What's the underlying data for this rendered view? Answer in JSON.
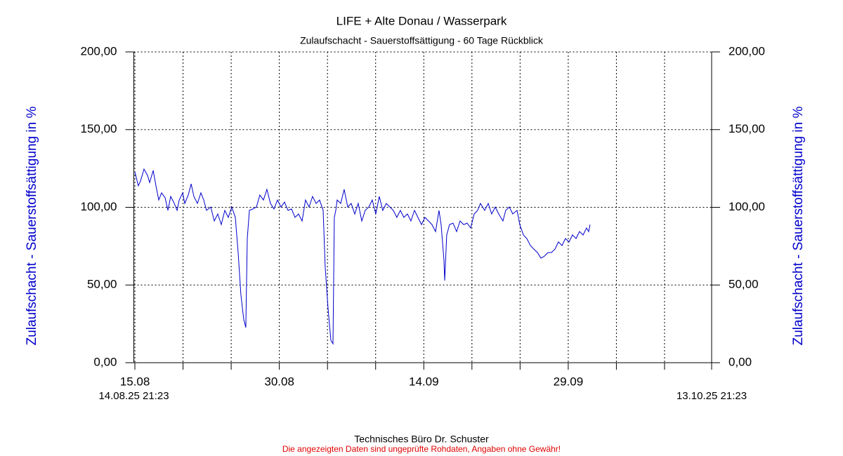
{
  "chart_data": {
    "type": "line",
    "title": "LIFE + Alte Donau / Wasserpark",
    "subtitle": "Zulaufschacht - Sauerstoffsättigung - 60 Tage Rückblick",
    "ylabel": "Zulaufschacht - Sauerstoffsättigung in %",
    "y2label": "Zulaufschacht - Sauerstoffsättigung in %",
    "footer": "Technisches Büro Dr. Schuster",
    "disclaimer": "Die angezeigten Daten sind ungeprüfte Rohdaten, Angaben ohne Gewähr!",
    "color": "#0000cc",
    "grid": true,
    "ylim": [
      0,
      200
    ],
    "yticks": [
      {
        "value": 0,
        "label": "0,00"
      },
      {
        "value": 50,
        "label": "50,00"
      },
      {
        "value": 100,
        "label": "100,00"
      },
      {
        "value": 150,
        "label": "150,00"
      },
      {
        "value": 200,
        "label": "200,00"
      }
    ],
    "y2lim": [
      0,
      200
    ],
    "y2ticks": [
      {
        "value": 0,
        "label": "0,00"
      },
      {
        "value": 50,
        "label": "50,00"
      },
      {
        "value": 100,
        "label": "100,00"
      },
      {
        "value": 150,
        "label": "150,00"
      },
      {
        "value": 200,
        "label": "200,00"
      }
    ],
    "xlim": [
      0,
      60
    ],
    "xlim_labels": [
      "14.08.25 21:23",
      "13.10.25 21:23"
    ],
    "xticks": [
      {
        "value": 0.11,
        "label": "15.08"
      },
      {
        "value": 5.11,
        "label": null
      },
      {
        "value": 10.11,
        "label": null
      },
      {
        "value": 15.11,
        "label": "30.08"
      },
      {
        "value": 20.11,
        "label": null
      },
      {
        "value": 25.11,
        "label": null
      },
      {
        "value": 30.11,
        "label": "14.09"
      },
      {
        "value": 35.11,
        "label": null
      },
      {
        "value": 40.11,
        "label": null
      },
      {
        "value": 45.11,
        "label": "29.09"
      },
      {
        "value": 50.11,
        "label": null
      },
      {
        "value": 55.11,
        "label": null
      },
      {
        "value": 60,
        "label": null
      }
    ],
    "x": [
      0.11,
      0.47,
      0.69,
      1.06,
      1.42,
      1.64,
      2.01,
      2.3,
      2.59,
      2.88,
      3.25,
      3.54,
      3.83,
      4.2,
      4.49,
      4.71,
      5.07,
      5.29,
      5.65,
      5.95,
      6.24,
      6.6,
      6.97,
      7.26,
      7.55,
      7.99,
      8.35,
      8.72,
      9.08,
      9.45,
      9.81,
      10.17,
      10.54,
      10.83,
      11.12,
      11.41,
      11.63,
      11.78,
      12.0,
      12.36,
      12.73,
      13.09,
      13.46,
      13.82,
      14.19,
      14.55,
      14.92,
      15.28,
      15.65,
      16.01,
      16.38,
      16.74,
      17.1,
      17.47,
      17.83,
      18.2,
      18.56,
      18.93,
      19.29,
      19.66,
      19.87,
      20.17,
      20.46,
      20.68,
      20.82,
      20.97,
      21.11,
      21.48,
      21.84,
      22.21,
      22.57,
      22.94,
      23.3,
      23.67,
      24.03,
      24.4,
      24.76,
      25.12,
      25.49,
      25.85,
      26.22,
      26.59,
      26.95,
      27.31,
      27.68,
      28.04,
      28.41,
      28.77,
      29.14,
      29.5,
      29.87,
      30.23,
      30.6,
      30.96,
      31.33,
      31.69,
      31.91,
      32.2,
      32.28,
      32.49,
      32.78,
      33.15,
      33.52,
      33.88,
      34.25,
      34.61,
      34.98,
      35.34,
      35.7,
      35.99,
      36.43,
      36.8,
      37.16,
      37.53,
      37.89,
      38.33,
      38.62,
      38.99,
      39.35,
      39.79,
      40.08,
      40.45,
      40.81,
      41.18,
      41.54,
      41.91,
      42.27,
      42.64,
      43.0,
      43.36,
      43.73,
      44.09,
      44.46,
      44.82,
      45.19,
      45.55,
      45.92,
      46.28,
      46.65,
      47.01,
      47.23,
      47.38
    ],
    "values": [
      122.8,
      113.8,
      116.9,
      124.6,
      120.5,
      116.0,
      123.7,
      113.8,
      104.7,
      109.3,
      106.1,
      98.0,
      107.0,
      102.5,
      98.0,
      104.7,
      109.3,
      102.5,
      107.9,
      115.1,
      107.0,
      102.5,
      109.3,
      104.7,
      98.0,
      100.2,
      91.2,
      95.7,
      88.9,
      98.0,
      93.5,
      100.2,
      93.5,
      70.9,
      43.8,
      28.0,
      22.6,
      79.9,
      98.0,
      98.9,
      100.2,
      107.9,
      104.7,
      111.5,
      102.5,
      98.9,
      104.7,
      100.2,
      103.4,
      98.0,
      98.9,
      93.5,
      95.7,
      91.2,
      104.7,
      100.2,
      107.0,
      102.5,
      104.7,
      98.0,
      61.9,
      34.8,
      14.4,
      12.2,
      93.5,
      98.0,
      104.7,
      102.5,
      111.5,
      100.2,
      102.5,
      95.7,
      102.5,
      91.2,
      98.0,
      100.2,
      104.7,
      95.7,
      107.0,
      98.0,
      102.5,
      100.2,
      98.0,
      93.5,
      98.0,
      93.5,
      95.7,
      91.2,
      98.0,
      93.5,
      88.9,
      93.5,
      91.2,
      88.9,
      84.4,
      98.0,
      88.9,
      66.4,
      52.8,
      82.2,
      88.9,
      89.8,
      84.4,
      91.2,
      88.9,
      89.8,
      86.7,
      95.7,
      98.0,
      102.5,
      98.0,
      102.5,
      95.7,
      100.2,
      95.7,
      91.2,
      98.0,
      100.2,
      95.7,
      98.0,
      88.9,
      82.2,
      79.9,
      75.4,
      73.1,
      70.9,
      67.3,
      68.6,
      70.9,
      70.9,
      73.1,
      77.7,
      75.4,
      79.9,
      77.7,
      82.2,
      79.9,
      84.4,
      82.2,
      86.7,
      84.4,
      88.9
    ]
  }
}
